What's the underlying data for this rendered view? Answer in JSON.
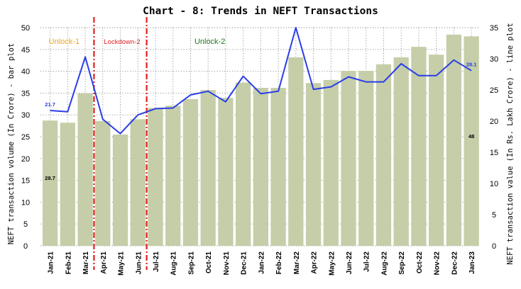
{
  "chart_data": {
    "type": "bar",
    "title": "Chart - 8: Trends in NEFT Transactions",
    "categories": [
      "Jan-21",
      "Feb-21",
      "Mar-21",
      "Apr-21",
      "May-21",
      "Jun-21",
      "Jul-21",
      "Aug-21",
      "Sep-21",
      "Oct-21",
      "Nov-21",
      "Dec-21",
      "Jan-22",
      "Feb-22",
      "Mar-22",
      "Apr-22",
      "May-22",
      "Jun-22",
      "Jul-22",
      "Aug-22",
      "Sep-22",
      "Oct-22",
      "Nov-22",
      "Dec-22",
      "Jan-23"
    ],
    "ylabel_left": "NEFT transaction volume (In Crore) - bar plot",
    "ylabel_right": "NEFT transaction value (In Rs. Lakh Crore) - line plot",
    "ylim_left": [
      0,
      50
    ],
    "ylim_right": [
      0,
      35
    ],
    "yticks_left": [
      "0",
      "5",
      "10",
      "15",
      "20",
      "25",
      "30",
      "35",
      "40",
      "45",
      "50"
    ],
    "yticks_right": [
      "0",
      "5",
      "10",
      "15",
      "20",
      "25",
      "30",
      "35"
    ],
    "grid": true,
    "series": [
      {
        "type": "bar",
        "axis": "left",
        "color": "#c5cea8",
        "values": [
          28.7,
          28.2,
          34.9,
          28.6,
          25.5,
          29.0,
          31.6,
          32.1,
          33.6,
          35.7,
          33.9,
          37.4,
          36.2,
          36.2,
          43.2,
          37.3,
          38.0,
          40.1,
          40.1,
          41.6,
          43.2,
          45.6,
          43.8,
          48.4,
          48.0
        ]
      },
      {
        "type": "line",
        "axis": "right",
        "color": "#2a3de6",
        "values": [
          21.7,
          21.5,
          30.3,
          20.3,
          18.0,
          21.0,
          22.0,
          22.1,
          24.2,
          24.8,
          23.1,
          27.2,
          24.4,
          24.8,
          35.0,
          25.1,
          25.5,
          27.1,
          26.3,
          26.3,
          29.2,
          27.3,
          27.3,
          29.8,
          28.1
        ]
      }
    ],
    "data_labels": [
      {
        "text": "21.7",
        "series": "line",
        "index": 0,
        "color": "#2a3de6"
      },
      {
        "text": "28.1",
        "series": "line",
        "index": 24,
        "color": "#2a3de6"
      },
      {
        "text": "28.7",
        "series": "bar",
        "index": 0,
        "color": "#000000"
      },
      {
        "text": "48",
        "series": "bar",
        "index": 24,
        "color": "#000000"
      }
    ],
    "phases": [
      {
        "label": "Unlock-1",
        "color": "#f2a51a"
      },
      {
        "label": "Lockdown-2",
        "color": "#e02020"
      },
      {
        "label": "Unlock-2",
        "color": "#1e7a1e"
      }
    ],
    "phase_separators": [
      {
        "after_category": "Mar-21",
        "color": "#e02020"
      },
      {
        "after_category": "Jun-21",
        "color": "#e02020"
      }
    ]
  }
}
